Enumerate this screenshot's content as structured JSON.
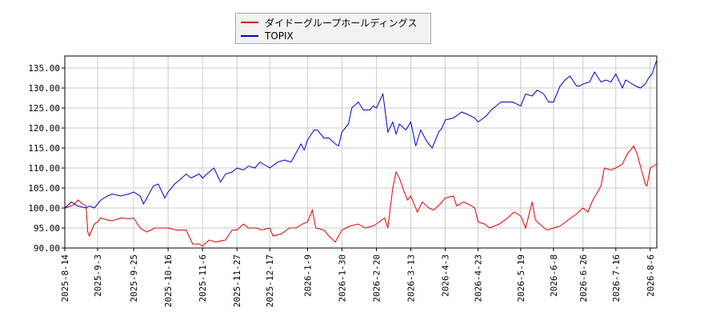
{
  "chart_data": {
    "type": "line",
    "title": "",
    "xlabel": "",
    "ylabel": "",
    "ylim": [
      90,
      138
    ],
    "yticks": [
      "90.00",
      "95.00",
      "100.00",
      "105.00",
      "110.00",
      "115.00",
      "120.00",
      "125.00",
      "130.00",
      "135.00"
    ],
    "xticks": [
      "2025-8-14",
      "2025-9-3",
      "2025-9-25",
      "2025-10-16",
      "2025-11-6",
      "2025-11-27",
      "2025-12-17",
      "2026-1-9",
      "2026-1-30",
      "2026-2-20",
      "2026-3-13",
      "2026-4-3",
      "2026-4-23",
      "2026-5-19",
      "2026-6-8",
      "2026-6-26",
      "2026-7-16",
      "2026-8-6"
    ],
    "grid": true,
    "legend_position": "top-center",
    "series": [
      {
        "name": "ダイドーグループホールディングス",
        "color": "#dd0000",
        "points": [
          [
            "2025-8-14",
            100.0
          ],
          [
            "2025-8-18",
            100.5
          ],
          [
            "2025-8-20",
            101.0
          ],
          [
            "2025-8-22",
            102.0
          ],
          [
            "2025-8-25",
            101.0
          ],
          [
            "2025-8-27",
            100.5
          ],
          [
            "2025-8-28",
            94.0
          ],
          [
            "2025-8-29",
            93.0
          ],
          [
            "2025-9-1",
            96.0
          ],
          [
            "2025-9-3",
            96.5
          ],
          [
            "2025-9-5",
            97.5
          ],
          [
            "2025-9-9",
            97.0
          ],
          [
            "2025-9-12",
            96.8
          ],
          [
            "2025-9-17",
            97.5
          ],
          [
            "2025-9-22",
            97.3
          ],
          [
            "2025-9-25",
            97.5
          ],
          [
            "2025-9-29",
            95.0
          ],
          [
            "2025-10-3",
            94.0
          ],
          [
            "2025-10-8",
            95.0
          ],
          [
            "2025-10-14",
            95.0
          ],
          [
            "2025-10-16",
            95.0
          ],
          [
            "2025-10-21",
            94.5
          ],
          [
            "2025-10-27",
            94.5
          ],
          [
            "2025-10-31",
            91.0
          ],
          [
            "2025-11-4",
            91.0
          ],
          [
            "2025-11-6",
            90.5
          ],
          [
            "2025-11-10",
            92.0
          ],
          [
            "2025-11-14",
            91.5
          ],
          [
            "2025-11-20",
            92.0
          ],
          [
            "2025-11-24",
            94.5
          ],
          [
            "2025-11-27",
            94.5
          ],
          [
            "2025-12-1",
            96.0
          ],
          [
            "2025-12-4",
            95.0
          ],
          [
            "2025-12-9",
            95.0
          ],
          [
            "2025-12-12",
            94.5
          ],
          [
            "2025-12-17",
            95.0
          ],
          [
            "2025-12-19",
            93.0
          ],
          [
            "2025-12-24",
            93.5
          ],
          [
            "2025-12-29",
            95.0
          ],
          [
            "2026-1-2",
            95.0
          ],
          [
            "2026-1-6",
            96.0
          ],
          [
            "2026-1-9",
            96.5
          ],
          [
            "2026-1-12",
            99.5
          ],
          [
            "2026-1-14",
            95.0
          ],
          [
            "2026-1-19",
            94.5
          ],
          [
            "2026-1-22",
            93.0
          ],
          [
            "2026-1-26",
            91.5
          ],
          [
            "2026-1-30",
            94.5
          ],
          [
            "2026-2-4",
            95.5
          ],
          [
            "2026-2-9",
            96.0
          ],
          [
            "2026-2-13",
            95.0
          ],
          [
            "2026-2-18",
            95.5
          ],
          [
            "2026-2-20",
            96.0
          ],
          [
            "2026-2-25",
            97.5
          ],
          [
            "2026-2-27",
            95.0
          ],
          [
            "2026-3-2",
            105.0
          ],
          [
            "2026-3-4",
            109.0
          ],
          [
            "2026-3-6",
            107.5
          ],
          [
            "2026-3-9",
            104.0
          ],
          [
            "2026-3-11",
            102.0
          ],
          [
            "2026-3-13",
            103.0
          ],
          [
            "2026-3-17",
            99.0
          ],
          [
            "2026-3-20",
            101.5
          ],
          [
            "2026-3-24",
            100.0
          ],
          [
            "2026-3-27",
            99.5
          ],
          [
            "2026-3-31",
            101.0
          ],
          [
            "2026-4-3",
            102.5
          ],
          [
            "2026-4-8",
            103.0
          ],
          [
            "2026-4-10",
            100.5
          ],
          [
            "2026-4-14",
            101.5
          ],
          [
            "2026-4-17",
            101.0
          ],
          [
            "2026-4-21",
            100.0
          ],
          [
            "2026-4-23",
            96.5
          ],
          [
            "2026-4-27",
            96.0
          ],
          [
            "2026-4-30",
            95.0
          ],
          [
            "2026-5-6",
            96.0
          ],
          [
            "2026-5-11",
            97.5
          ],
          [
            "2026-5-15",
            99.0
          ],
          [
            "2026-5-19",
            98.0
          ],
          [
            "2026-5-22",
            95.0
          ],
          [
            "2026-5-26",
            101.5
          ],
          [
            "2026-5-28",
            97.0
          ],
          [
            "2026-6-1",
            95.5
          ],
          [
            "2026-6-4",
            94.5
          ],
          [
            "2026-6-8",
            95.0
          ],
          [
            "2026-6-12",
            95.5
          ],
          [
            "2026-6-17",
            97.0
          ],
          [
            "2026-6-22",
            98.5
          ],
          [
            "2026-6-26",
            100.0
          ],
          [
            "2026-6-29",
            99.0
          ],
          [
            "2026-7-2",
            102.0
          ],
          [
            "2026-7-7",
            105.5
          ],
          [
            "2026-7-9",
            110.0
          ],
          [
            "2026-7-13",
            109.5
          ],
          [
            "2026-7-16",
            110.0
          ],
          [
            "2026-7-20",
            111.0
          ],
          [
            "2026-7-23",
            113.5
          ],
          [
            "2026-7-27",
            115.5
          ],
          [
            "2026-7-29",
            113.5
          ],
          [
            "2026-8-3",
            106.0
          ],
          [
            "2026-8-4",
            105.5
          ],
          [
            "2026-8-6",
            110.0
          ],
          [
            "2026-8-10",
            111.0
          ]
        ]
      },
      {
        "name": "TOPIX",
        "color": "#0000cc",
        "points": [
          [
            "2025-8-14",
            100.0
          ],
          [
            "2025-8-18",
            101.5
          ],
          [
            "2025-8-22",
            100.5
          ],
          [
            "2025-8-27",
            100.0
          ],
          [
            "2025-8-29",
            100.5
          ],
          [
            "2025-9-1",
            100.0
          ],
          [
            "2025-9-3",
            101.0
          ],
          [
            "2025-9-5",
            102.0
          ],
          [
            "2025-9-9",
            103.0
          ],
          [
            "2025-9-12",
            103.5
          ],
          [
            "2025-9-17",
            103.0
          ],
          [
            "2025-9-22",
            103.5
          ],
          [
            "2025-9-25",
            104.0
          ],
          [
            "2025-9-29",
            103.0
          ],
          [
            "2025-10-1",
            101.0
          ],
          [
            "2025-10-3",
            102.5
          ],
          [
            "2025-10-7",
            105.5
          ],
          [
            "2025-10-10",
            106.0
          ],
          [
            "2025-10-14",
            102.5
          ],
          [
            "2025-10-16",
            104.0
          ],
          [
            "2025-10-20",
            106.0
          ],
          [
            "2025-10-23",
            107.0
          ],
          [
            "2025-10-27",
            108.5
          ],
          [
            "2025-10-30",
            107.5
          ],
          [
            "2025-11-4",
            108.5
          ],
          [
            "2025-11-6",
            107.5
          ],
          [
            "2025-11-10",
            109.0
          ],
          [
            "2025-11-13",
            110.0
          ],
          [
            "2025-11-17",
            106.5
          ],
          [
            "2025-11-20",
            108.5
          ],
          [
            "2025-11-24",
            109.0
          ],
          [
            "2025-11-27",
            110.0
          ],
          [
            "2025-12-1",
            109.5
          ],
          [
            "2025-12-4",
            110.5
          ],
          [
            "2025-12-8",
            110.0
          ],
          [
            "2025-12-11",
            111.5
          ],
          [
            "2025-12-15",
            110.5
          ],
          [
            "2025-12-17",
            110.0
          ],
          [
            "2025-12-22",
            111.5
          ],
          [
            "2025-12-26",
            112.0
          ],
          [
            "2025-12-30",
            111.5
          ],
          [
            "2026-1-5",
            116.0
          ],
          [
            "2026-1-7",
            114.5
          ],
          [
            "2026-1-9",
            117.0
          ],
          [
            "2026-1-13",
            119.5
          ],
          [
            "2026-1-15",
            119.5
          ],
          [
            "2026-1-19",
            117.5
          ],
          [
            "2026-1-22",
            117.5
          ],
          [
            "2026-1-26",
            116.0
          ],
          [
            "2026-1-28",
            115.5
          ],
          [
            "2026-1-30",
            119.0
          ],
          [
            "2026-2-3",
            121.0
          ],
          [
            "2026-2-5",
            125.0
          ],
          [
            "2026-2-9",
            126.5
          ],
          [
            "2026-2-12",
            124.5
          ],
          [
            "2026-2-16",
            124.5
          ],
          [
            "2026-2-18",
            125.5
          ],
          [
            "2026-2-20",
            125.0
          ],
          [
            "2026-2-24",
            128.5
          ],
          [
            "2026-2-27",
            119.0
          ],
          [
            "2026-3-2",
            121.5
          ],
          [
            "2026-3-4",
            118.5
          ],
          [
            "2026-3-6",
            121.0
          ],
          [
            "2026-3-10",
            119.5
          ],
          [
            "2026-3-13",
            121.5
          ],
          [
            "2026-3-16",
            115.5
          ],
          [
            "2026-3-19",
            119.5
          ],
          [
            "2026-3-23",
            116.5
          ],
          [
            "2026-3-26",
            115.0
          ],
          [
            "2026-3-30",
            119.0
          ],
          [
            "2026-4-1",
            120.0
          ],
          [
            "2026-4-3",
            122.0
          ],
          [
            "2026-4-8",
            122.5
          ],
          [
            "2026-4-13",
            124.0
          ],
          [
            "2026-4-16",
            123.5
          ],
          [
            "2026-4-21",
            122.5
          ],
          [
            "2026-4-23",
            121.5
          ],
          [
            "2026-4-28",
            123.0
          ],
          [
            "2026-5-1",
            124.5
          ],
          [
            "2026-5-7",
            126.5
          ],
          [
            "2026-5-11",
            126.5
          ],
          [
            "2026-5-14",
            126.5
          ],
          [
            "2026-5-19",
            125.5
          ],
          [
            "2026-5-22",
            128.5
          ],
          [
            "2026-5-26",
            128.0
          ],
          [
            "2026-5-29",
            129.5
          ],
          [
            "2026-6-2",
            128.5
          ],
          [
            "2026-6-5",
            126.5
          ],
          [
            "2026-6-8",
            126.5
          ],
          [
            "2026-6-12",
            130.5
          ],
          [
            "2026-6-15",
            132.0
          ],
          [
            "2026-6-18",
            133.0
          ],
          [
            "2026-6-22",
            130.5
          ],
          [
            "2026-6-24",
            130.5
          ],
          [
            "2026-6-26",
            131.0
          ],
          [
            "2026-6-30",
            131.5
          ],
          [
            "2026-7-3",
            134.0
          ],
          [
            "2026-7-7",
            131.5
          ],
          [
            "2026-7-10",
            132.0
          ],
          [
            "2026-7-13",
            131.5
          ],
          [
            "2026-7-16",
            133.5
          ],
          [
            "2026-7-20",
            130.0
          ],
          [
            "2026-7-22",
            132.0
          ],
          [
            "2026-7-24",
            131.5
          ],
          [
            "2026-7-28",
            130.5
          ],
          [
            "2026-7-31",
            130.0
          ],
          [
            "2026-8-3",
            131.0
          ],
          [
            "2026-8-5",
            132.5
          ],
          [
            "2026-8-7",
            133.5
          ],
          [
            "2026-8-10",
            137.0
          ]
        ]
      }
    ]
  }
}
